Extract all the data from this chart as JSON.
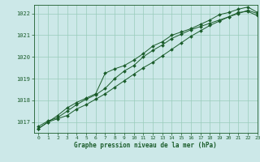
{
  "xlabel": "Graphe pression niveau de la mer (hPa)",
  "bg_color": "#cce8e8",
  "grid_color": "#99ccbb",
  "line_color": "#1a5c2a",
  "marker_color": "#1a5c2a",
  "xlim": [
    -0.5,
    23
  ],
  "ylim": [
    1016.5,
    1022.4
  ],
  "yticks": [
    1017,
    1018,
    1019,
    1020,
    1021,
    1022
  ],
  "xticks": [
    0,
    1,
    2,
    3,
    4,
    5,
    6,
    7,
    8,
    9,
    10,
    11,
    12,
    13,
    14,
    15,
    16,
    17,
    18,
    19,
    20,
    21,
    22,
    23
  ],
  "line1": [
    1016.8,
    1017.05,
    1017.2,
    1017.5,
    1017.8,
    1018.05,
    1018.25,
    1018.55,
    1019.0,
    1019.35,
    1019.6,
    1020.0,
    1020.3,
    1020.55,
    1020.85,
    1021.05,
    1021.25,
    1021.4,
    1021.55,
    1021.7,
    1021.85,
    1022.0,
    1022.15,
    1022.0
  ],
  "line2": [
    1016.7,
    1017.0,
    1017.3,
    1017.65,
    1017.9,
    1018.1,
    1018.3,
    1019.25,
    1019.45,
    1019.6,
    1019.85,
    1020.15,
    1020.5,
    1020.7,
    1021.0,
    1021.15,
    1021.3,
    1021.5,
    1021.7,
    1021.95,
    1022.05,
    1022.2,
    1022.3,
    1022.05
  ],
  "line3": [
    1016.7,
    1017.0,
    1017.15,
    1017.3,
    1017.6,
    1017.8,
    1018.05,
    1018.3,
    1018.6,
    1018.9,
    1019.2,
    1019.5,
    1019.75,
    1020.05,
    1020.35,
    1020.65,
    1020.95,
    1021.2,
    1021.45,
    1021.65,
    1021.85,
    1022.05,
    1022.1,
    1021.9
  ]
}
